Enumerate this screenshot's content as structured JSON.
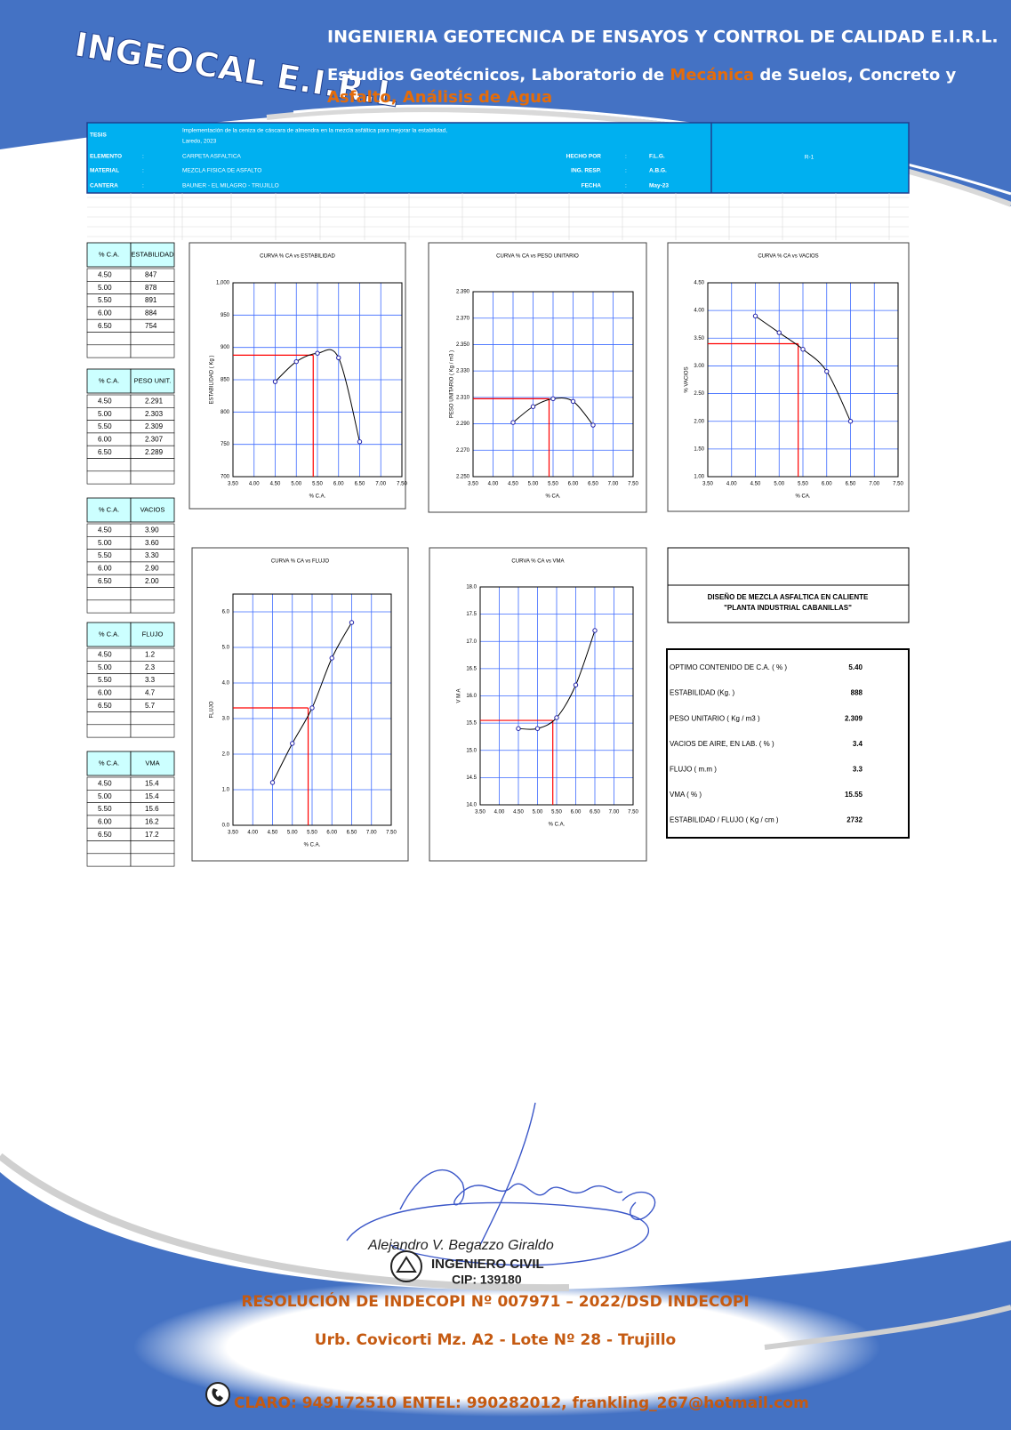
{
  "header": {
    "logo": "INGEOCAL E.I.R.L",
    "company": "INGENIERIA GEOTECNICA DE ENSAYOS Y CONTROL DE CALIDAD E.I.R.L.",
    "services": [
      "Estudios Geotécnicos, Laboratorio de ",
      "Mecánica",
      " de Suelos, Concreto y",
      "Asfalto, Análisis de Agua"
    ]
  },
  "info": {
    "separator": ":",
    "tesis_label": "TESIS",
    "tesis": [
      "Implementación de la ceniza de cáscara de almendra en la mezcla asfáltica para mejorar la estabilidad,",
      "Laredo, 2023"
    ],
    "fields": [
      {
        "label": "ELEMENTO",
        "value": "CARPETA ASFALTICA"
      },
      {
        "label": "MATERIAL",
        "value": "MEZCLA FISICA DE ASFALTO"
      },
      {
        "label": "CANTERA",
        "value": "BAUNER - EL MILAGRO - TRUJILLO"
      }
    ],
    "right_fields": [
      {
        "label": "HECHO POR",
        "value": "F.L.G."
      },
      {
        "label": "ING. RESP.",
        "value": "A.B.G."
      },
      {
        "label": "FECHA",
        "value": "May-23"
      }
    ],
    "code": "R-1"
  },
  "tables": [
    {
      "header": [
        "% C.A.",
        "ESTABILIDAD"
      ],
      "rows": [
        [
          "4.50",
          "847"
        ],
        [
          "5.00",
          "878"
        ],
        [
          "5.50",
          "891"
        ],
        [
          "6.00",
          "884"
        ],
        [
          "6.50",
          "754"
        ]
      ]
    },
    {
      "header": [
        "% C.A.",
        "PESO UNIT."
      ],
      "rows": [
        [
          "4.50",
          "2.291"
        ],
        [
          "5.00",
          "2.303"
        ],
        [
          "5.50",
          "2.309"
        ],
        [
          "6.00",
          "2.307"
        ],
        [
          "6.50",
          "2.289"
        ]
      ]
    },
    {
      "header": [
        "% C.A.",
        "VACIOS"
      ],
      "rows": [
        [
          "4.50",
          "3.90"
        ],
        [
          "5.00",
          "3.60"
        ],
        [
          "5.50",
          "3.30"
        ],
        [
          "6.00",
          "2.90"
        ],
        [
          "6.50",
          "2.00"
        ]
      ]
    },
    {
      "header": [
        "% C.A.",
        "FLUJO"
      ],
      "rows": [
        [
          "4.50",
          "1.2"
        ],
        [
          "5.00",
          "2.3"
        ],
        [
          "5.50",
          "3.3"
        ],
        [
          "6.00",
          "4.7"
        ],
        [
          "6.50",
          "5.7"
        ]
      ]
    },
    {
      "header": [
        "% C.A.",
        "VMA"
      ],
      "rows": [
        [
          "4.50",
          "15.4"
        ],
        [
          "5.00",
          "15.4"
        ],
        [
          "5.50",
          "15.6"
        ],
        [
          "6.00",
          "16.2"
        ],
        [
          "6.50",
          "17.2"
        ]
      ]
    }
  ],
  "chart_data": [
    {
      "type": "line",
      "title": "CURVA % CA vs ESTABILIDAD",
      "x_label": "% C.A.",
      "y_label": "ESTABILIDAD ( Kg )",
      "x": [
        4.5,
        5,
        5.5,
        6,
        6.5
      ],
      "values": [
        847,
        878,
        891,
        884,
        754
      ],
      "color": "#1f1fa8",
      "line_color": "#000000",
      "grid_color": "#3d6bff",
      "reference": {
        "x": 5.4,
        "y": 888
      },
      "reference_color": "#ff0000",
      "xlim": [
        3.5,
        7.5
      ],
      "xticks": [
        {
          "value": 3.5,
          "label": "3.50"
        },
        {
          "value": 4,
          "label": "4.00"
        },
        {
          "value": 4.5,
          "label": "4.50"
        },
        {
          "value": 5,
          "label": "5.00"
        },
        {
          "value": 5.5,
          "label": "5.50"
        },
        {
          "value": 6,
          "label": "6.00"
        },
        {
          "value": 6.5,
          "label": "6.50"
        },
        {
          "value": 7,
          "label": "7.00"
        },
        {
          "value": 7.5,
          "label": "7.50"
        }
      ],
      "ylim": [
        700,
        1000
      ],
      "yticks": [
        700,
        750,
        800,
        850,
        900,
        950,
        {
          "value": 1000,
          "label": "1,000"
        }
      ]
    },
    {
      "type": "line",
      "title": "CURVA % CA vs PESO UNITARIO",
      "x_label": "% CA.",
      "y_label": "PESO UNITARIO ( Kg / m3 )",
      "x": [
        4.5,
        5,
        5.5,
        6,
        6.5
      ],
      "values": [
        2.291,
        2.303,
        2.309,
        2.307,
        2.289
      ],
      "color": "#1f1fa8",
      "line_color": "#000000",
      "grid_color": "#3d6bff",
      "reference": {
        "x": 5.4,
        "y": 2.309
      },
      "reference_color": "#ff0000",
      "xlim": [
        3.5,
        7.5
      ],
      "xticks": [
        {
          "value": 3.5,
          "label": "3.50"
        },
        {
          "value": 4,
          "label": "4.00"
        },
        {
          "value": 4.5,
          "label": "4.50"
        },
        {
          "value": 5,
          "label": "5.00"
        },
        {
          "value": 5.5,
          "label": "5.50"
        },
        {
          "value": 6,
          "label": "6.00"
        },
        {
          "value": 6.5,
          "label": "6.50"
        },
        {
          "value": 7,
          "label": "7.00"
        },
        {
          "value": 7.5,
          "label": "7.50"
        }
      ],
      "ylim": [
        2.25,
        2.39
      ],
      "yticks": [
        {
          "value": 2.25,
          "label": "2.250"
        },
        {
          "value": 2.27,
          "label": "2.270"
        },
        {
          "value": 2.29,
          "label": "2.290"
        },
        {
          "value": 2.31,
          "label": "2.310"
        },
        {
          "value": 2.33,
          "label": "2.330"
        },
        {
          "value": 2.35,
          "label": "2.350"
        },
        {
          "value": 2.37,
          "label": "2.370"
        },
        {
          "value": 2.39,
          "label": "2.390"
        }
      ]
    },
    {
      "type": "line",
      "title": "CURVA % CA vs VACIOS",
      "x_label": "% CA.",
      "y_label": "% VACIOS",
      "x": [
        4.5,
        5,
        5.5,
        6,
        6.5
      ],
      "values": [
        3.9,
        3.6,
        3.3,
        2.9,
        2.0
      ],
      "color": "#1f1fa8",
      "line_color": "#000000",
      "grid_color": "#3d6bff",
      "reference": {
        "x": 5.4,
        "y": 3.4
      },
      "reference_color": "#ff0000",
      "xlim": [
        3.5,
        7.5
      ],
      "xticks": [
        {
          "value": 3.5,
          "label": "3.50"
        },
        {
          "value": 4,
          "label": "4.00"
        },
        {
          "value": 4.5,
          "label": "4.50"
        },
        {
          "value": 5,
          "label": "5.00"
        },
        {
          "value": 5.5,
          "label": "5.50"
        },
        {
          "value": 6,
          "label": "6.00"
        },
        {
          "value": 6.5,
          "label": "6.50"
        },
        {
          "value": 7,
          "label": "7.00"
        },
        {
          "value": 7.5,
          "label": "7.50"
        }
      ],
      "ylim": [
        1,
        4.5
      ],
      "yticks": [
        {
          "value": 1,
          "label": "1.00"
        },
        {
          "value": 1.5,
          "label": "1.50"
        },
        {
          "value": 2,
          "label": "2.00"
        },
        {
          "value": 2.5,
          "label": "2.50"
        },
        {
          "value": 3,
          "label": "3.00"
        },
        {
          "value": 3.5,
          "label": "3.50"
        },
        {
          "value": 4,
          "label": "4.00"
        },
        {
          "value": 4.5,
          "label": "4.50"
        }
      ]
    },
    {
      "type": "line",
      "title": "CURVA % CA vs FLUJO",
      "x_label": "% C.A.",
      "y_label": "FLUJO",
      "x": [
        4.5,
        5,
        5.5,
        6,
        6.5
      ],
      "values": [
        1.2,
        2.3,
        3.3,
        4.7,
        5.7
      ],
      "color": "#1f1fa8",
      "line_color": "#000000",
      "grid_color": "#3d6bff",
      "reference": {
        "x": 5.4,
        "y": 3.3
      },
      "reference_color": "#ff0000",
      "xlim": [
        3.5,
        7.5
      ],
      "xticks": [
        {
          "value": 3.5,
          "label": "3.50"
        },
        {
          "value": 4,
          "label": "4.00"
        },
        {
          "value": 4.5,
          "label": "4.50"
        },
        {
          "value": 5,
          "label": "5.00"
        },
        {
          "value": 5.5,
          "label": "5.50"
        },
        {
          "value": 6,
          "label": "6.00"
        },
        {
          "value": 6.5,
          "label": "6.50"
        },
        {
          "value": 7,
          "label": "7.00"
        },
        {
          "value": 7.5,
          "label": "7.50"
        }
      ],
      "ylim": [
        0,
        6.5
      ],
      "yticks": [
        {
          "value": 0,
          "label": "0.0"
        },
        {
          "value": 1,
          "label": "1.0"
        },
        {
          "value": 2,
          "label": "2.0"
        },
        {
          "value": 3,
          "label": "3.0"
        },
        {
          "value": 4,
          "label": "4.0"
        },
        {
          "value": 5,
          "label": "5.0"
        },
        {
          "value": 6,
          "label": "6.0"
        }
      ]
    },
    {
      "type": "line",
      "title": "CURVA % CA vs VMA",
      "x_label": "% C.A.",
      "y_label": "V M A",
      "x": [
        4.5,
        5,
        5.5,
        6,
        6.5
      ],
      "values": [
        15.4,
        15.4,
        15.6,
        16.2,
        17.2
      ],
      "color": "#1f1fa8",
      "line_color": "#000000",
      "grid_color": "#3d6bff",
      "reference": {
        "x": 5.4,
        "y": 15.55
      },
      "reference_color": "#ff0000",
      "xlim": [
        3.5,
        7.5
      ],
      "xticks": [
        {
          "value": 3.5,
          "label": "3.50"
        },
        {
          "value": 4,
          "label": "4.00"
        },
        {
          "value": 4.5,
          "label": "4.50"
        },
        {
          "value": 5,
          "label": "5.00"
        },
        {
          "value": 5.5,
          "label": "5.50"
        },
        {
          "value": 6,
          "label": "6.00"
        },
        {
          "value": 6.5,
          "label": "6.50"
        },
        {
          "value": 7,
          "label": "7.00"
        },
        {
          "value": 7.5,
          "label": "7.50"
        }
      ],
      "ylim": [
        14,
        18
      ],
      "yticks": [
        {
          "value": 14,
          "label": "14.0"
        },
        14.5,
        {
          "value": 15,
          "label": "15.0"
        },
        15.5,
        {
          "value": 16,
          "label": "16.0"
        },
        16.5,
        {
          "value": 17,
          "label": "17.0"
        },
        17.5,
        {
          "value": 18,
          "label": "18.0"
        }
      ]
    }
  ],
  "summary": {
    "title": [
      "DISEÑO DE MEZCLA ASFALTICA EN CALIENTE",
      "\"PLANTA INDUSTRIAL CABANILLAS\""
    ],
    "rows": [
      [
        "OPTIMO CONTENIDO DE C.A. ( % )",
        "5.40"
      ],
      [
        "ESTABILIDAD (Kg. )",
        "888"
      ],
      [
        "PESO UNITARIO ( Kg / m3 )",
        "2.309"
      ],
      [
        "VACIOS DE AIRE, EN LAB. ( % )",
        "3.4"
      ],
      [
        "FLUJO ( m.m )",
        "3.3"
      ],
      [
        "VMA ( % )",
        "15.55"
      ],
      [
        "ESTABILIDAD / FLUJO ( Kg / cm )",
        "2732"
      ]
    ]
  },
  "footer": {
    "signature": "Alejandro V. Begazzo Giraldo",
    "profession": "INGENIERO CIVIL",
    "cip": "CIP: 139180",
    "resolution": "RESOLUCIÓN DE INDECOPI Nº 007971 – 2022/DSD INDECOPI",
    "address": "Urb. Covicorti Mz. A2 - Lote Nº 28 - Trujillo",
    "contact": "CLARO: 949172510 ENTEL: 990282012, frankling_267@hotmail.com"
  }
}
